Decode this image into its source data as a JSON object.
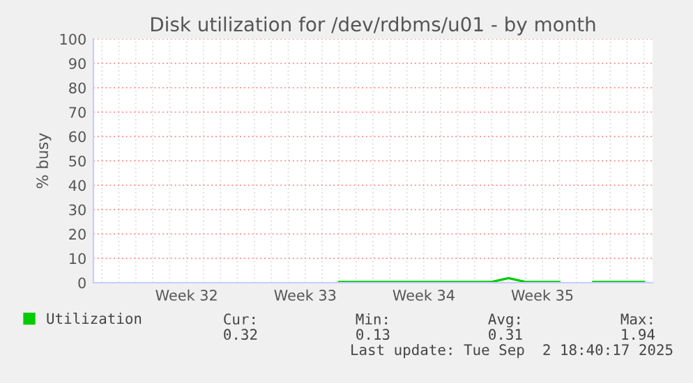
{
  "chart_data": {
    "type": "line",
    "title": "Disk utilization for /dev/rdbms/u01 - by month",
    "ylabel": "% busy",
    "categories": [
      null,
      null,
      null,
      null,
      null,
      "Week 32",
      null,
      null,
      null,
      null,
      null,
      null,
      "Week 33",
      null,
      null,
      null,
      null,
      null,
      null,
      "Week 34",
      null,
      null,
      null,
      null,
      null,
      null,
      "Week 35",
      null,
      null,
      null,
      null,
      null,
      null
    ],
    "ylim": [
      0,
      100
    ],
    "yticks": [
      0,
      10,
      20,
      30,
      40,
      50,
      60,
      70,
      80,
      90,
      100
    ],
    "grid": true,
    "legend": "bottom left",
    "series": [
      {
        "name": "Utilization",
        "color": "#00cc00",
        "values": [
          null,
          null,
          null,
          null,
          null,
          null,
          null,
          null,
          null,
          null,
          null,
          null,
          null,
          null,
          0.3,
          0.3,
          0.3,
          0.3,
          0.3,
          0.3,
          0.3,
          0.3,
          0.3,
          0.3,
          1.9,
          0.3,
          0.3,
          0.3,
          null,
          0.3,
          0.3,
          0.3,
          0.3
        ]
      }
    ],
    "annotations": [
      "Cur:",
      "0.32",
      "Min:",
      "0.13",
      "Avg:",
      "0.31",
      "Max:",
      "1.94",
      "Last update: Tue Sep  2 18:40:17 2025"
    ]
  }
}
